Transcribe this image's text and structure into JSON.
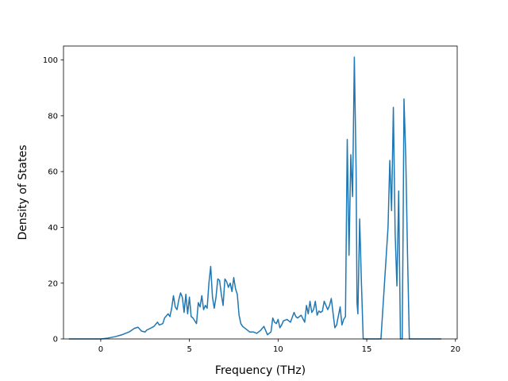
{
  "chart_data": {
    "type": "line",
    "title": "",
    "xlabel": "Frequency (THz)",
    "ylabel": "Density of States",
    "xlim": [
      -2.1,
      20.1
    ],
    "ylim": [
      0,
      105
    ],
    "xticks": [
      0,
      5,
      10,
      15,
      20
    ],
    "yticks": [
      0,
      20,
      40,
      60,
      80,
      100
    ],
    "grid": false,
    "line_color": "#1f77b4",
    "series": [
      {
        "x": [
          -1.8,
          0.0,
          0.4,
          0.8,
          1.2,
          1.6,
          1.9,
          2.1,
          2.3,
          2.5,
          2.6,
          2.8,
          3.0,
          3.2,
          3.3,
          3.5,
          3.6,
          3.8,
          3.9,
          4.0,
          4.1,
          4.2,
          4.3,
          4.4,
          4.5,
          4.6,
          4.7,
          4.8,
          4.9,
          5.0,
          5.1,
          5.2,
          5.3,
          5.4,
          5.5,
          5.6,
          5.7,
          5.8,
          5.9,
          6.0,
          6.1,
          6.2,
          6.3,
          6.4,
          6.5,
          6.6,
          6.7,
          6.8,
          6.9,
          7.0,
          7.1,
          7.2,
          7.3,
          7.4,
          7.5,
          7.6,
          7.7,
          7.8,
          7.9,
          8.0,
          8.1,
          8.2,
          8.3,
          8.4,
          8.6,
          8.8,
          9.0,
          9.2,
          9.4,
          9.6,
          9.7,
          9.8,
          9.9,
          10.0,
          10.1,
          10.2,
          10.3,
          10.5,
          10.7,
          10.9,
          11.0,
          11.1,
          11.3,
          11.5,
          11.6,
          11.7,
          11.8,
          11.9,
          12.0,
          12.1,
          12.2,
          12.3,
          12.4,
          12.5,
          12.6,
          12.8,
          12.9,
          13.0,
          13.2,
          13.3,
          13.5,
          13.6,
          13.7,
          13.8,
          13.9,
          14.0,
          14.1,
          14.2,
          14.3,
          14.4,
          14.45,
          14.5,
          14.6,
          14.7,
          14.8,
          14.85,
          14.95,
          15.2,
          15.8,
          16.2,
          16.3,
          16.4,
          16.5,
          16.6,
          16.7,
          16.8,
          16.9,
          17.0,
          17.05,
          17.1,
          17.2,
          17.3,
          17.4,
          17.5,
          17.6,
          18.0,
          19.2
        ],
        "values": [
          0,
          0,
          0.3,
          0.8,
          1.5,
          2.5,
          3.8,
          4.2,
          2.8,
          2.5,
          3.2,
          3.8,
          4.5,
          6.0,
          5.0,
          5.5,
          7.5,
          9.0,
          8.0,
          11.0,
          15.5,
          11.5,
          10.5,
          14.0,
          16.5,
          15.0,
          9.5,
          16.0,
          9.0,
          15.0,
          8.0,
          7.5,
          6.5,
          5.5,
          13.0,
          11.5,
          15.5,
          10.5,
          12.0,
          11.0,
          20.0,
          26.0,
          15.0,
          11.0,
          15.0,
          21.5,
          21.0,
          16.0,
          12.0,
          21.5,
          20.5,
          18.5,
          20.0,
          17.0,
          22.0,
          18.0,
          16.0,
          8.5,
          5.5,
          4.5,
          4.0,
          3.5,
          3.0,
          2.5,
          2.5,
          2.0,
          3.0,
          4.5,
          1.5,
          2.5,
          7.5,
          6.0,
          5.5,
          7.0,
          4.0,
          5.0,
          6.5,
          7.0,
          6.0,
          9.5,
          8.0,
          7.5,
          8.5,
          6.0,
          12.0,
          9.0,
          13.5,
          9.5,
          10.5,
          13.5,
          8.5,
          10.0,
          9.5,
          10.0,
          13.5,
          10.5,
          12.0,
          14.5,
          4.0,
          5.0,
          11.5,
          5.0,
          7.0,
          8.0,
          71.5,
          30.0,
          66.0,
          51.0,
          101.0,
          60.0,
          13.0,
          9.0,
          43.0,
          20.0,
          0,
          0,
          0,
          0,
          0,
          40.0,
          64.0,
          46.0,
          83.0,
          38.0,
          19.0,
          53.0,
          0,
          0,
          40.0,
          86.0,
          65.0,
          30.0,
          0,
          0,
          0,
          0,
          0
        ]
      }
    ]
  }
}
